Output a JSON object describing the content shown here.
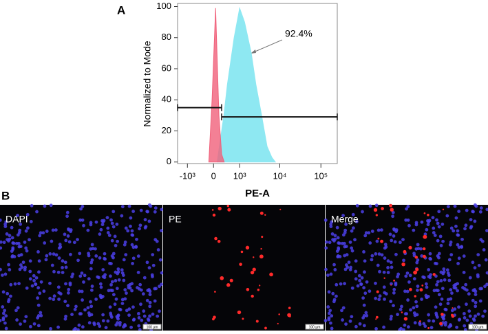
{
  "chart_data": {
    "type": "histogram-overlay",
    "panel_label": "A",
    "ylabel": "Normalized to Mode",
    "xlabel": "PE-A",
    "xscale": "biexponential",
    "xlim": [
      -1800,
      250000
    ],
    "ylim": [
      -1,
      102
    ],
    "xticks": [
      {
        "value": -1000,
        "label": "-10³"
      },
      0,
      {
        "value": 1000,
        "label": "10³"
      },
      {
        "value": 10000,
        "label": "10⁴"
      },
      {
        "value": 100000,
        "label": "10⁵"
      }
    ],
    "yticks": [
      0,
      20,
      40,
      60,
      80,
      100
    ],
    "series": [
      {
        "color": "#8ee8f2",
        "x": [
          100,
          300,
          420,
          700,
          1000,
          1350,
          2000,
          2600,
          3600,
          4900,
          6400,
          7800
        ],
        "values": [
          0,
          30,
          50,
          80,
          99,
          90,
          70,
          50,
          30,
          10,
          3,
          0
        ]
      },
      {
        "color": "#f0607a",
        "x": [
          -130,
          -40,
          57,
          150,
          230,
          310
        ],
        "values": [
          0,
          40,
          99,
          30,
          5,
          0
        ]
      }
    ],
    "gates": [
      {
        "range": [
          -1800,
          230
        ],
        "y": 35
      },
      {
        "range": [
          230,
          250000
        ],
        "y": 29
      }
    ],
    "annotation": "92.4%"
  },
  "images": {
    "panel_label": "B",
    "panels": [
      {
        "label": "DAPI",
        "scale_bar": "100 µm"
      },
      {
        "label": "PE",
        "scale_bar": "100 µm"
      },
      {
        "label": "Merge",
        "scale_bar": "100 µm"
      }
    ]
  }
}
